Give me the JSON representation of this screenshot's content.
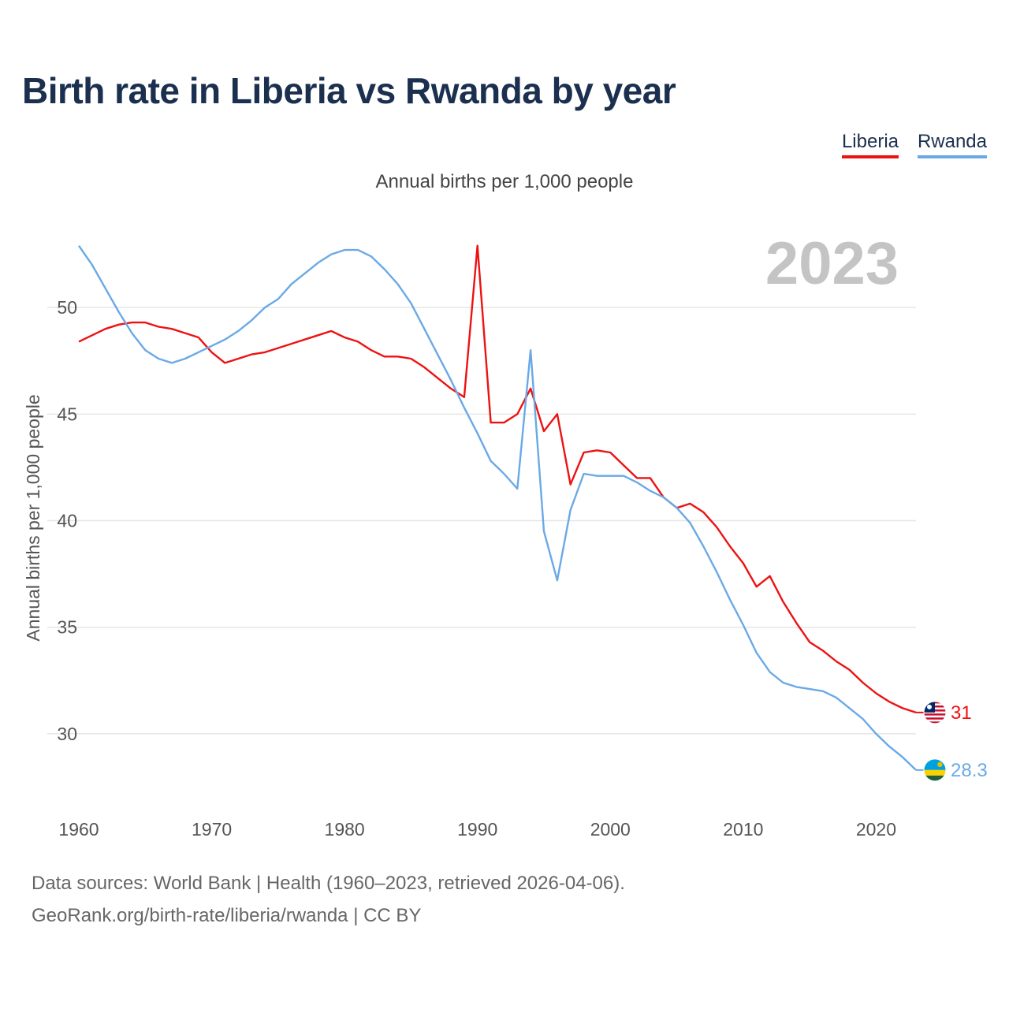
{
  "title": "Birth rate in Liberia vs Rwanda by year",
  "subtitle": "Annual births per 1,000 people",
  "legend": {
    "liberia": "Liberia",
    "rwanda": "Rwanda"
  },
  "sources": {
    "line1": "Data sources: World Bank | Health (1960–2023, retrieved 2026-04-06).",
    "line2": "GeoRank.org/birth-rate/liberia/rwanda | CC BY"
  },
  "colors": {
    "liberia": "#ee1111",
    "rwanda": "#6aa9e6",
    "title": "#1b2f4f",
    "year": "#c4c4c4"
  },
  "chart_data": {
    "type": "line",
    "title": "Birth rate in Liberia vs Rwanda by year",
    "ylabel": "Annual births per 1,000 people",
    "xlabel": "",
    "year_label": "2023",
    "xlim": [
      1960,
      2023
    ],
    "ylim": [
      27,
      54
    ],
    "yticks": [
      30,
      35,
      40,
      45,
      50
    ],
    "xticks": [
      1960,
      1970,
      1980,
      1990,
      2000,
      2010,
      2020
    ],
    "grid": true,
    "x": [
      1960,
      1961,
      1962,
      1963,
      1964,
      1965,
      1966,
      1967,
      1968,
      1969,
      1970,
      1971,
      1972,
      1973,
      1974,
      1975,
      1976,
      1977,
      1978,
      1979,
      1980,
      1981,
      1982,
      1983,
      1984,
      1985,
      1986,
      1987,
      1988,
      1989,
      1990,
      1991,
      1992,
      1993,
      1994,
      1995,
      1996,
      1997,
      1998,
      1999,
      2000,
      2001,
      2002,
      2003,
      2004,
      2005,
      2006,
      2007,
      2008,
      2009,
      2010,
      2011,
      2012,
      2013,
      2014,
      2015,
      2016,
      2017,
      2018,
      2019,
      2020,
      2021,
      2022,
      2023
    ],
    "series": [
      {
        "name": "Liberia",
        "end_label": "31",
        "values": [
          48.4,
          48.7,
          49.0,
          49.2,
          49.3,
          49.3,
          49.1,
          49.0,
          48.8,
          48.6,
          47.9,
          47.4,
          47.6,
          47.8,
          47.9,
          48.1,
          48.3,
          48.5,
          48.7,
          48.9,
          48.6,
          48.4,
          48.0,
          47.7,
          47.7,
          47.6,
          47.2,
          46.7,
          46.2,
          45.8,
          52.9,
          44.6,
          44.6,
          45.0,
          46.2,
          44.2,
          45.0,
          41.7,
          43.2,
          43.3,
          43.2,
          42.6,
          42.0,
          42.0,
          41.1,
          40.6,
          40.8,
          40.4,
          39.7,
          38.8,
          38.0,
          36.9,
          37.4,
          36.2,
          35.2,
          34.3,
          33.9,
          33.4,
          33.0,
          32.4,
          31.9,
          31.5,
          31.2,
          31.0
        ]
      },
      {
        "name": "Rwanda",
        "end_label": "28.3",
        "values": [
          52.9,
          52.0,
          50.9,
          49.8,
          48.8,
          48.0,
          47.6,
          47.4,
          47.6,
          47.9,
          48.2,
          48.5,
          48.9,
          49.4,
          50.0,
          50.4,
          51.1,
          51.6,
          52.1,
          52.5,
          52.7,
          52.7,
          52.4,
          51.8,
          51.1,
          50.2,
          49.0,
          47.8,
          46.6,
          45.3,
          44.1,
          42.8,
          42.2,
          41.5,
          48.0,
          39.5,
          37.2,
          40.5,
          42.2,
          42.1,
          42.1,
          42.1,
          41.8,
          41.4,
          41.1,
          40.6,
          39.9,
          38.8,
          37.6,
          36.3,
          35.1,
          33.8,
          32.9,
          32.4,
          32.2,
          32.1,
          32.0,
          31.7,
          31.2,
          30.7,
          30.0,
          29.4,
          28.9,
          28.3
        ]
      }
    ]
  }
}
